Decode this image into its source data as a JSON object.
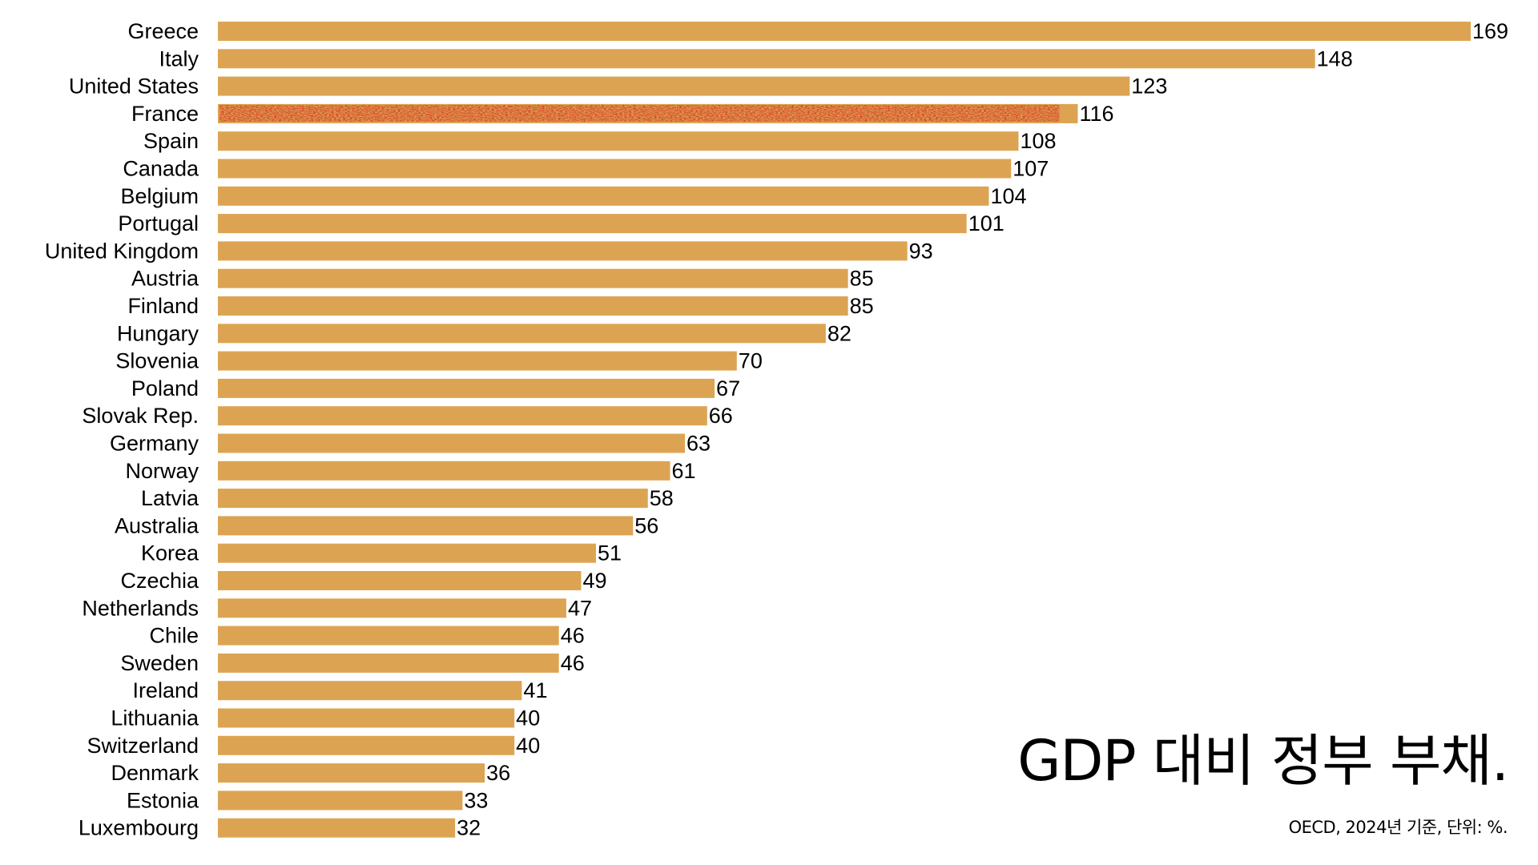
{
  "chart_data": {
    "type": "bar",
    "orientation": "horizontal",
    "title": "GDP 대비 정부 부채.",
    "subtitle": "OECD, 2024년 기준, 단위: %.",
    "xlabel": "",
    "ylabel": "",
    "xlim": [
      0,
      169
    ],
    "grid": false,
    "legend": "none",
    "bar_color": "#DCA452",
    "highlight_color": "#D93F27",
    "highlight_category": "France",
    "categories": [
      "Greece",
      "Italy",
      "United States",
      "France",
      "Spain",
      "Canada",
      "Belgium",
      "Portugal",
      "United Kingdom",
      "Austria",
      "Finland",
      "Hungary",
      "Slovenia",
      "Poland",
      "Slovak Rep.",
      "Germany",
      "Norway",
      "Latvia",
      "Australia",
      "Korea",
      "Czechia",
      "Netherlands",
      "Chile",
      "Sweden",
      "Ireland",
      "Lithuania",
      "Switzerland",
      "Denmark",
      "Estonia",
      "Luxembourg"
    ],
    "values": [
      169,
      148,
      123,
      116,
      108,
      107,
      104,
      101,
      93,
      85,
      85,
      82,
      70,
      67,
      66,
      63,
      61,
      58,
      56,
      51,
      49,
      47,
      46,
      46,
      41,
      40,
      40,
      36,
      33,
      32
    ],
    "value_labels": [
      "169",
      "148",
      "123",
      "116",
      "108",
      "107",
      "104",
      "101",
      "93",
      "85",
      "85",
      "82",
      "70",
      "67",
      "66",
      "63",
      "61",
      "58",
      "56",
      "51",
      "49",
      "47",
      "46",
      "46",
      "41",
      "40",
      "40",
      "36",
      "33",
      "32"
    ]
  }
}
